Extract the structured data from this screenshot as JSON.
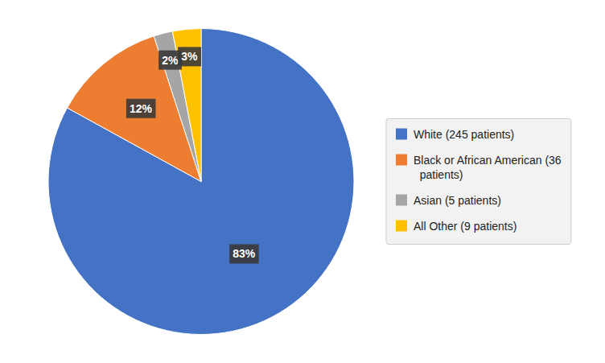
{
  "chart_data": {
    "type": "pie",
    "categories": [
      "White (245 patients)",
      "Black or African American (36\n  patients)",
      "Asian (5 patients)",
      "All Other (9 patients)"
    ],
    "values": [
      83,
      12,
      2,
      3
    ],
    "value_labels": [
      "83%",
      "12%",
      "2%",
      "3%"
    ],
    "colors": [
      "#4472C4",
      "#ED7D31",
      "#A5A5A5",
      "#FFC000"
    ],
    "data_labels": true,
    "legend": "right"
  }
}
